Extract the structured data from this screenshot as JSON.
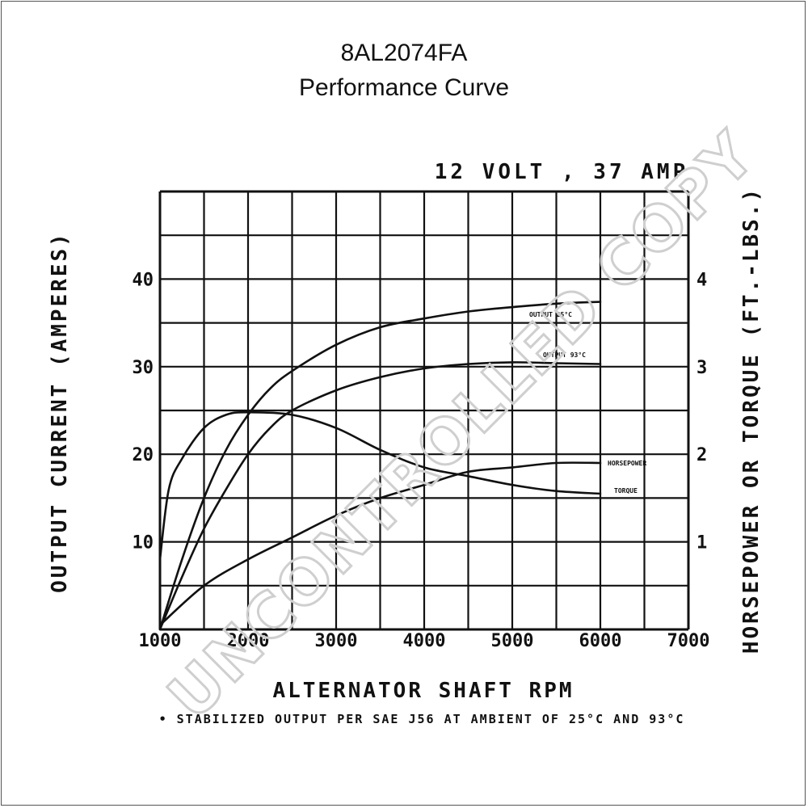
{
  "chart_data": {
    "type": "line",
    "title": "8AL2074FA",
    "subtitle": "Performance Curve",
    "rating": "12 VOLT , 37 AMP",
    "xlabel": "ALTERNATOR SHAFT RPM",
    "ylabel": "OUTPUT CURRENT (AMPERES)",
    "y2label": "HORSEPOWER OR TORQUE (FT.-LBS.)",
    "footnote": "• STABILIZED OUTPUT PER SAE J56 AT AMBIENT OF 25°C AND 93°C",
    "xlim": [
      1000,
      7000
    ],
    "ylim": [
      0,
      50
    ],
    "y2lim": [
      0,
      5
    ],
    "xticks": [
      "1000",
      "2000",
      "3000",
      "4000",
      "5000",
      "6000",
      "7000"
    ],
    "yticks": [
      {
        "v": 10,
        "label": "10"
      },
      {
        "v": 20,
        "label": "20"
      },
      {
        "v": 30,
        "label": "30"
      },
      {
        "v": 40,
        "label": "40"
      }
    ],
    "y2ticks": [
      {
        "v": 1,
        "label": "1"
      },
      {
        "v": 2,
        "label": "2"
      },
      {
        "v": 3,
        "label": "3"
      },
      {
        "v": 4,
        "label": "4"
      }
    ],
    "grid": true,
    "series": [
      {
        "name": "OUTPUT 25°C",
        "axis": "y",
        "x": [
          1000,
          1250,
          1500,
          1750,
          2000,
          2250,
          2500,
          3000,
          3500,
          4000,
          4500,
          5000,
          5500,
          6000
        ],
        "values": [
          0,
          8,
          15,
          20.5,
          24.5,
          27.5,
          29.5,
          32.5,
          34.5,
          35.5,
          36.3,
          36.8,
          37.2,
          37.4
        ]
      },
      {
        "name": "OUTPUT 93°C",
        "axis": "y",
        "x": [
          1000,
          1250,
          1500,
          1750,
          2000,
          2250,
          2500,
          3000,
          3500,
          4000,
          4500,
          5000,
          5500,
          6000
        ],
        "values": [
          0,
          6,
          11.5,
          16,
          20,
          23,
          25,
          27.3,
          28.8,
          29.8,
          30.3,
          30.5,
          30.4,
          30.3
        ]
      },
      {
        "name": "HORSEPOWER",
        "axis": "y2",
        "x": [
          1000,
          1500,
          2000,
          2500,
          3000,
          3500,
          4000,
          4500,
          5000,
          5500,
          6000
        ],
        "values": [
          0.05,
          0.5,
          0.8,
          1.05,
          1.3,
          1.5,
          1.65,
          1.8,
          1.85,
          1.9,
          1.9
        ]
      },
      {
        "name": "TORQUE",
        "axis": "y2",
        "x": [
          1000,
          1100,
          1250,
          1500,
          1750,
          2000,
          2500,
          3000,
          3500,
          4000,
          4500,
          5000,
          5500,
          6000
        ],
        "values": [
          0.8,
          1.6,
          1.95,
          2.3,
          2.45,
          2.48,
          2.45,
          2.3,
          2.05,
          1.85,
          1.75,
          1.65,
          1.58,
          1.55
        ]
      }
    ],
    "curve_labels": {
      "out25": "OUTPUT 25°C",
      "out93": "OUTPUT 93°C",
      "hp": "HORSEPOWER",
      "torque": "TORQUE"
    },
    "colors": {
      "ink": "#111111",
      "grid": "#111111",
      "watermark": "#cfcfcf"
    }
  },
  "watermark": "UNCONTROLLED COPY"
}
